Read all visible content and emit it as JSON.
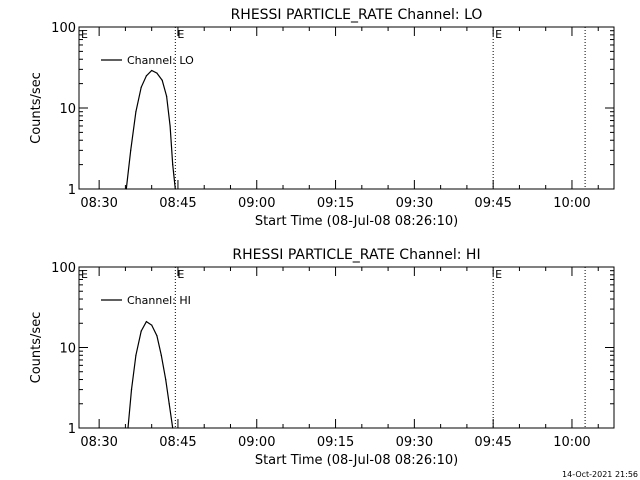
{
  "chart_data": [
    {
      "type": "line",
      "title": "RHESSI PARTICLE_RATE Channel: LO",
      "xlabel": "Start Time (08-Jul-08 08:26:10)",
      "ylabel": "Counts/sec",
      "yscale": "log",
      "ylim": [
        1,
        100
      ],
      "xlim": [
        "08:26:10",
        "10:08:00"
      ],
      "x_ticks": [
        "08:30",
        "08:45",
        "09:00",
        "09:15",
        "09:30",
        "09:45",
        "10:00"
      ],
      "y_ticks": [
        "1",
        "10",
        "100"
      ],
      "grid": false,
      "legend_position": "top-left",
      "markers": [
        {
          "time": "08:44:30",
          "label": "E",
          "style": "dotted"
        },
        {
          "time": "09:45:00",
          "label": "E",
          "style": "dotted"
        },
        {
          "time": "10:02:30",
          "label": "",
          "style": "dotted"
        }
      ],
      "series": [
        {
          "name": "Channel: LO",
          "color": "#000000",
          "x": [
            "08:35:10",
            "08:36:00",
            "08:37:00",
            "08:38:00",
            "08:39:00",
            "08:40:00",
            "08:41:00",
            "08:42:00",
            "08:42:50",
            "08:43:30",
            "08:44:00",
            "08:44:30"
          ],
          "y": [
            1,
            3,
            9,
            18,
            25,
            29,
            27,
            22,
            14,
            6,
            2,
            1
          ]
        }
      ]
    },
    {
      "type": "line",
      "title": "RHESSI PARTICLE_RATE Channel: HI",
      "xlabel": "Start Time (08-Jul-08 08:26:10)",
      "ylabel": "Counts/sec",
      "yscale": "log",
      "ylim": [
        1,
        100
      ],
      "xlim": [
        "08:26:10",
        "10:08:00"
      ],
      "x_ticks": [
        "08:30",
        "08:45",
        "09:00",
        "09:15",
        "09:30",
        "09:45",
        "10:00"
      ],
      "y_ticks": [
        "1",
        "10",
        "100"
      ],
      "grid": false,
      "legend_position": "top-left",
      "markers": [
        {
          "time": "08:44:30",
          "label": "E",
          "style": "dotted"
        },
        {
          "time": "09:45:00",
          "label": "E",
          "style": "dotted"
        },
        {
          "time": "10:02:30",
          "label": "",
          "style": "dotted"
        }
      ],
      "series": [
        {
          "name": "Channel: HI",
          "color": "#000000",
          "x": [
            "08:35:30",
            "08:36:10",
            "08:37:00",
            "08:38:00",
            "08:39:00",
            "08:40:00",
            "08:41:00",
            "08:41:50",
            "08:42:40",
            "08:43:20",
            "08:44:00"
          ],
          "y": [
            1,
            3,
            8,
            16,
            21,
            19,
            14,
            8,
            4,
            2,
            1
          ]
        }
      ]
    }
  ],
  "footer": {
    "timestamp": "14-Oct-2021 21:56"
  }
}
